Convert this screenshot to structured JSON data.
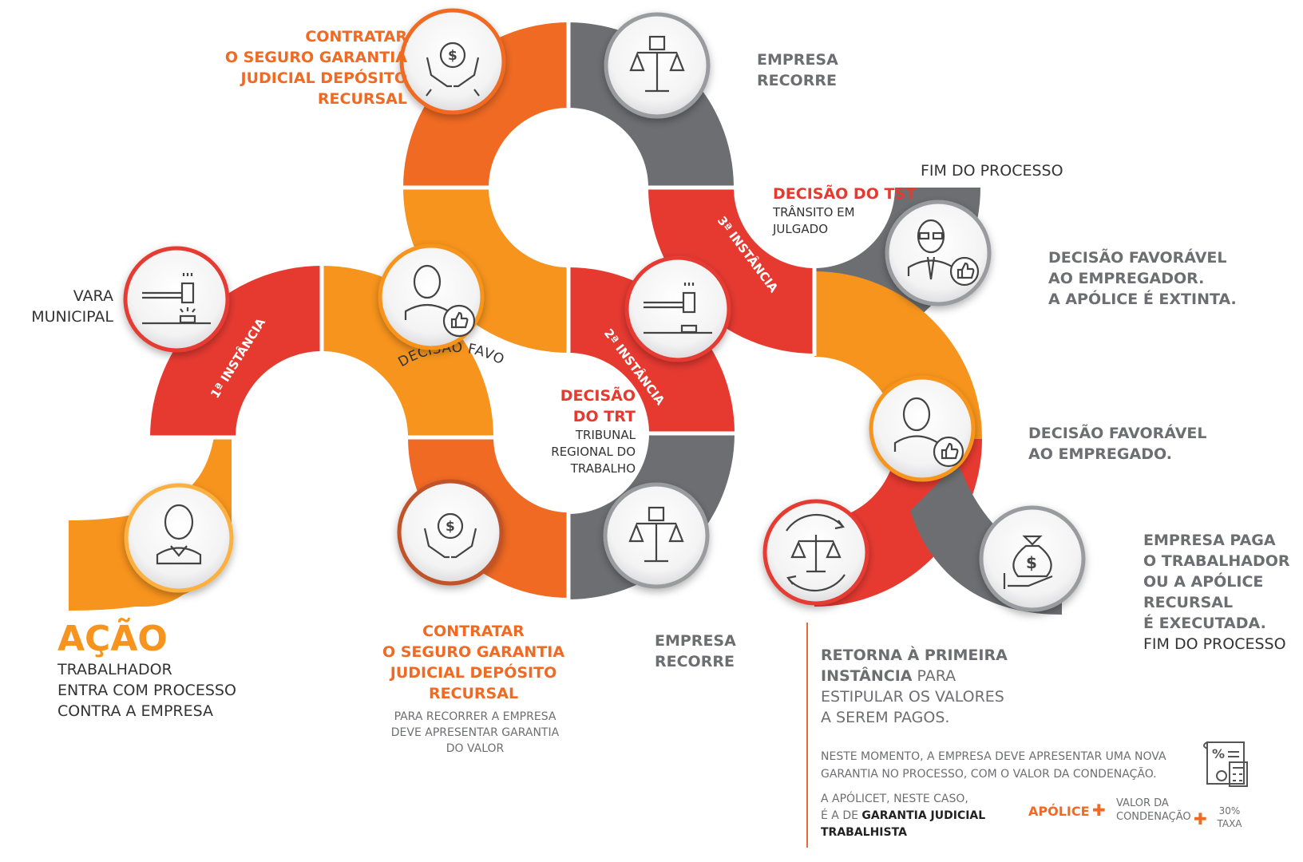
{
  "colors": {
    "orange": "#f06a23",
    "orange_light": "#f7941d",
    "red": "#e63a31",
    "gray": "#6d6e71",
    "dark": "#333333"
  },
  "band_labels": {
    "first": "1ª INSTÂNCIA",
    "second": "2ª INSTÂNCIA",
    "third": "3ª INSTÂNCIA",
    "arc": "DECISÃO FAVORÁVEL PARA O TRABALHADOR"
  },
  "acao": {
    "title": "AÇÃO",
    "lines": [
      "TRABALHADOR",
      "ENTRA COM PROCESSO",
      "CONTRA A EMPRESA"
    ]
  },
  "vara": {
    "lines": [
      "VARA",
      "MUNICIPAL"
    ]
  },
  "contratar_top": {
    "lines": [
      "CONTRATAR",
      "O SEGURO GARANTIA",
      "JUDICIAL DEPÓSITO",
      "RECURSAL"
    ]
  },
  "contratar_bottom": {
    "lines": [
      "CONTRATAR",
      "O SEGURO GARANTIA",
      "JUDICIAL DEPÓSITO",
      "RECURSAL"
    ],
    "note": [
      "PARA RECORRER A EMPRESA",
      "DEVE APRESENTAR GARANTIA",
      "DO VALOR"
    ]
  },
  "empresa_recorre_top": {
    "lines": [
      "EMPRESA",
      "RECORRE"
    ]
  },
  "empresa_recorre_bottom": {
    "lines": [
      "EMPRESA",
      "RECORRE"
    ]
  },
  "decisao_trt": {
    "title": [
      "DECISÃO",
      "DO TRT"
    ],
    "lines": [
      "TRIBUNAL",
      "REGIONAL DO",
      "TRABALHO"
    ]
  },
  "decisao_tst": {
    "title": "DECISÃO DO TST",
    "lines": [
      "TRÂNSITO EM",
      "JULGADO"
    ]
  },
  "fim_processo_top": "FIM DO PROCESSO",
  "favoravel_empregador": {
    "lines": [
      "DECISÃO FAVORÁVEL",
      "AO EMPREGADOR.",
      "A APÓLICE É EXTINTA."
    ]
  },
  "favoravel_empregado": {
    "lines": [
      "DECISÃO FAVORÁVEL",
      "AO EMPREGADO."
    ]
  },
  "empresa_paga": {
    "lines": [
      "EMPRESA PAGA",
      "O TRABALHADOR",
      "OU A APÓLICE",
      "RECURSAL",
      "É EXECUTADA."
    ],
    "end": "FIM DO PROCESSO"
  },
  "retorna": {
    "line1": "RETORNA À PRIMEIRA",
    "line2_bold": "INSTÂNCIA",
    "line2_rest": " PARA",
    "line3": "ESTIPULAR OS VALORES",
    "line4": "A SEREM PAGOS."
  },
  "neste_momento": [
    "NESTE MOMENTO, A EMPRESA DEVE APRESENTAR UMA NOVA",
    "GARANTIA NO PROCESSO, COM O VALOR DA CONDENAÇÃO."
  ],
  "apolicet": {
    "line1": "A APÓLICET, NESTE CASO,",
    "line2_prefix": "É A DE ",
    "line2_bold": "GARANTIA JUDICIAL",
    "line3_bold": "TRABALHISTA"
  },
  "formula": {
    "apolice": "APÓLICE",
    "plus": "✚",
    "valor": [
      "VALOR DA",
      "CONDENAÇÃO"
    ],
    "taxa": [
      "30%",
      "TAXA"
    ]
  },
  "icons": [
    "person-icon",
    "gavel-icon",
    "person-thumbs-up-icon",
    "money-hands-icon",
    "scales-fist-icon",
    "money-hands-icon",
    "scales-fist-icon",
    "gavel-icon",
    "businessman-thumbs-up-icon",
    "person-thumbs-up-icon",
    "money-bag-hand-icon",
    "scales-cycle-icon",
    "calculator-document-icon"
  ]
}
